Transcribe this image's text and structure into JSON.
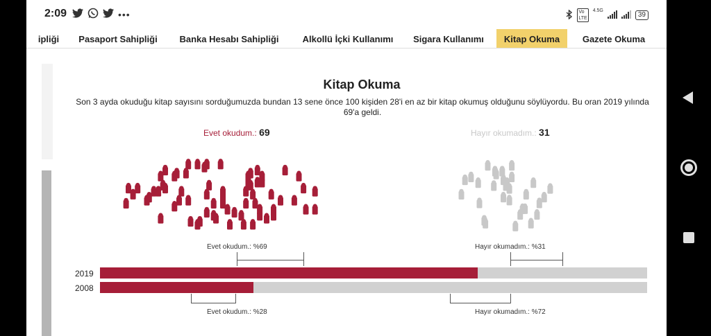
{
  "status_bar": {
    "time": "2:09",
    "left_icons": [
      "twitter-icon",
      "whatsapp-icon",
      "twitter-icon",
      "more-icon"
    ],
    "right_icons": [
      "bluetooth-icon",
      "volte-icon",
      "signal-icon",
      "signal-icon",
      "battery-icon"
    ],
    "network": "4.5G",
    "battery": "39"
  },
  "tabs": [
    {
      "label": "ipliği",
      "active": false
    },
    {
      "label": "Pasaport Sahipliği",
      "active": false
    },
    {
      "label": "Banka Hesabı Sahipliği",
      "active": false
    },
    {
      "label": "Alkollü İçki Kullanımı",
      "active": false
    },
    {
      "label": "Sigara Kullanımı",
      "active": false
    },
    {
      "label": "Kitap Okuma",
      "active": true
    },
    {
      "label": "Gazete Okuma",
      "active": false
    }
  ],
  "content": {
    "title": "Kitap Okuma",
    "description": "Son 3 ayda okuduğu kitap sayısını sorduğumuzda bundan 13 sene önce 100 kişiden 28'i en az bir kitap okumuş olduğunu söylüyordu. Bu oran 2019 yılında 69'a geldi.",
    "yes_label": "Evet okudum.:",
    "yes_count": "69",
    "no_label": "Hayır okumadım.:",
    "no_count": "31",
    "yes_2019_label": "Evet okudum.: %69",
    "no_2019_label": "Hayır okumadım.: %31",
    "yes_2008_label": "Evet okudum.: %28",
    "no_2008_label": "Hayır okumadım.: %72"
  },
  "chart_data": {
    "type": "bar",
    "categories": [
      "2019",
      "2008"
    ],
    "series": [
      {
        "name": "Evet okudum.",
        "values": [
          69,
          28
        ]
      },
      {
        "name": "Hayır okumadım.",
        "values": [
          31,
          72
        ]
      }
    ],
    "colors": {
      "yes": "#a61e38",
      "no": "#d1d1d1",
      "no_icon": "#c8c8c8"
    },
    "pictogram": {
      "yes_people": 69,
      "no_people": 31
    }
  },
  "navbar": {
    "icons": [
      "back-icon",
      "home-icon",
      "recent-apps-icon"
    ]
  }
}
